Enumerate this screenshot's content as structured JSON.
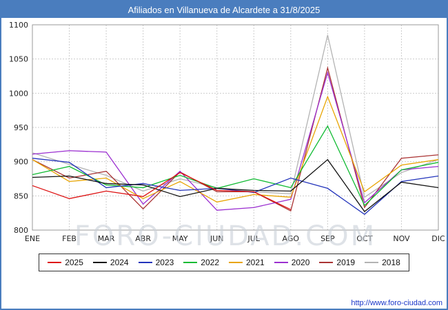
{
  "header": {
    "title": "Afiliados en Villanueva de Alcardete a 31/8/2025"
  },
  "watermark": "FORO-CIUDAD.COM",
  "footer": {
    "url": "http://www.foro-ciudad.com"
  },
  "chart_data": {
    "type": "line",
    "title": "Afiliados en Villanueva de Alcardete a 31/8/2025",
    "xlabel": "",
    "ylabel": "",
    "categories": [
      "ENE",
      "FEB",
      "MAR",
      "ABR",
      "MAY",
      "JUN",
      "JUL",
      "AGO",
      "SEP",
      "OCT",
      "NOV",
      "DIC"
    ],
    "ylim": [
      800,
      1100
    ],
    "yticks": [
      800,
      850,
      900,
      950,
      1000,
      1050,
      1100
    ],
    "grid": true,
    "legend_position": "bottom",
    "series": [
      {
        "name": "2025",
        "color": "#dd1111",
        "values": [
          865,
          846,
          857,
          849,
          884,
          858,
          856,
          830,
          null,
          null,
          null,
          null
        ]
      },
      {
        "name": "2024",
        "color": "#111111",
        "values": [
          877,
          879,
          868,
          866,
          849,
          861,
          858,
          857,
          903,
          827,
          870,
          862
        ]
      },
      {
        "name": "2023",
        "color": "#2233bb",
        "values": [
          905,
          899,
          862,
          868,
          858,
          861,
          855,
          876,
          861,
          823,
          871,
          879
        ]
      },
      {
        "name": "2022",
        "color": "#11bb33",
        "values": [
          881,
          893,
          866,
          862,
          880,
          861,
          875,
          862,
          952,
          836,
          888,
          899
        ]
      },
      {
        "name": "2021",
        "color": "#e8a400",
        "values": [
          903,
          871,
          876,
          846,
          871,
          841,
          852,
          848,
          995,
          856,
          895,
          903
        ]
      },
      {
        "name": "2020",
        "color": "#9b2fd0",
        "values": [
          911,
          916,
          914,
          838,
          886,
          829,
          833,
          845,
          1030,
          840,
          888,
          893
        ]
      },
      {
        "name": "2019",
        "color": "#aa3333",
        "values": [
          903,
          876,
          886,
          831,
          885,
          856,
          856,
          828,
          1037,
          833,
          905,
          910
        ]
      },
      {
        "name": "2018",
        "color": "#b3b3b3",
        "values": [
          913,
          896,
          880,
          857,
          875,
          862,
          856,
          853,
          1085,
          848,
          884,
          903
        ]
      }
    ]
  }
}
